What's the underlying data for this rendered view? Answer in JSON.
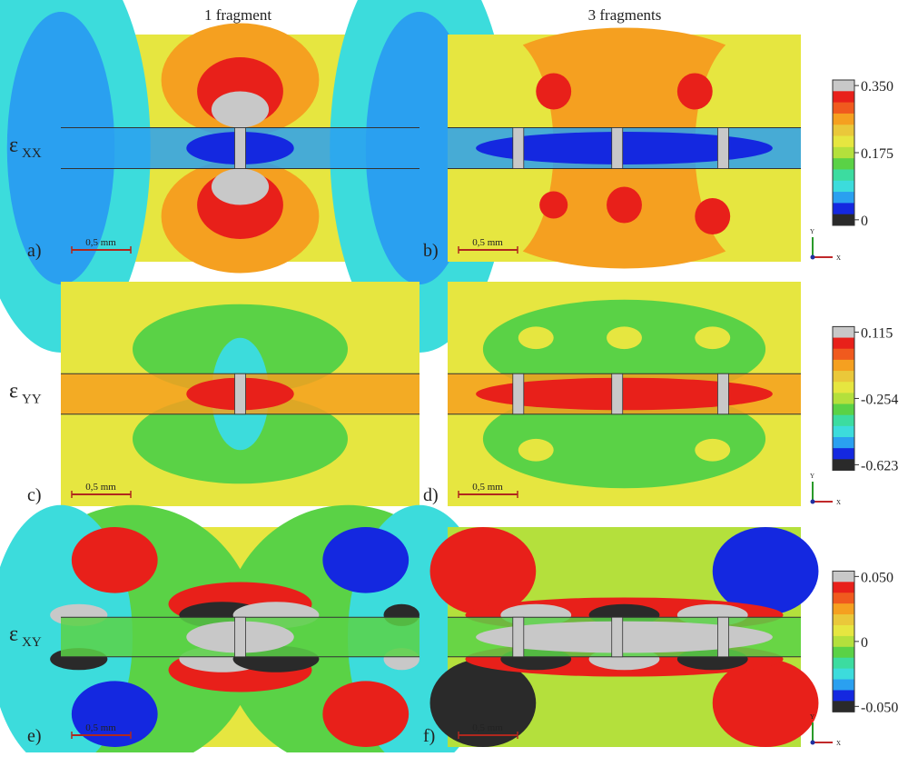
{
  "columns": [
    "1 fragment",
    "3 fragments"
  ],
  "rows": [
    {
      "symbol": "ε",
      "subscript": "XX",
      "panels": [
        "a)",
        "b)"
      ],
      "colorbar": [
        "0.350",
        "0.175",
        "0"
      ]
    },
    {
      "symbol": "ε",
      "subscript": "YY",
      "panels": [
        "c)",
        "d)"
      ],
      "colorbar": [
        "0.115",
        "-0.254",
        "-0.623"
      ]
    },
    {
      "symbol": "ε",
      "subscript": "XY",
      "panels": [
        "e)",
        "f)"
      ],
      "colorbar": [
        "0.050",
        "0",
        "-0.050"
      ]
    }
  ],
  "scale_bar": "0,5 mm",
  "axes": {
    "y": "Y",
    "x": "X"
  }
}
